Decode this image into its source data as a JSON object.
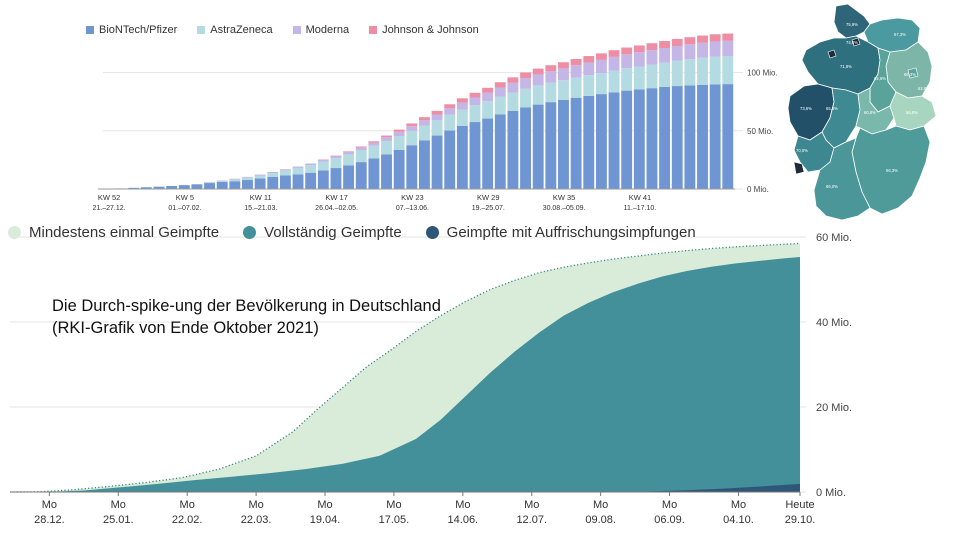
{
  "annotation": {
    "line1": "Die Durch-spike-ung der Bevölkerung in Deutschland",
    "line2": "(RKI-Grafik von Ende Oktober 2021)"
  },
  "colors": {
    "biontech": "#6f95d2",
    "astrazeneca": "#b4dbe1",
    "moderna": "#c4b6e6",
    "jj": "#ee8ea5",
    "once": "#d9ecd9",
    "full": "#438f9a",
    "booster": "#2d5679",
    "dots": "#3a8580",
    "grid": "#e5e5e5"
  },
  "chart_data": [
    {
      "type": "bar",
      "stacked": true,
      "legend_position": "top-left",
      "x_tick_labels": [
        {
          "kw": "KW 52",
          "date": "21.–27.12."
        },
        {
          "kw": "KW 5",
          "date": "01.–07.02."
        },
        {
          "kw": "KW 11",
          "date": "15.–21.03."
        },
        {
          "kw": "KW 17",
          "date": "26.04.–02.05."
        },
        {
          "kw": "KW 23",
          "date": "07.–13.06."
        },
        {
          "kw": "KW 29",
          "date": "19.–25.07."
        },
        {
          "kw": "KW 35",
          "date": "30.08.–05.09."
        },
        {
          "kw": "KW 41",
          "date": "11.–17.10."
        }
      ],
      "y_tick_labels": [
        "0 Mio.",
        "50 Mio.",
        "100 Mio."
      ],
      "y_ticks": [
        0,
        50,
        100
      ],
      "ylim": [
        0,
        140
      ],
      "grid": true,
      "series": [
        {
          "name": "BioNTech/Pfizer",
          "color_key": "biontech",
          "values": [
            0.1,
            0.5,
            1,
            1.5,
            2,
            2.6,
            3.3,
            4,
            5.1,
            6,
            6.7,
            7.7,
            9,
            10.3,
            11.6,
            12.6,
            14,
            16,
            18,
            20.3,
            23.1,
            26.3,
            29.8,
            33.5,
            37.6,
            41.8,
            45.9,
            50.2,
            54.1,
            57.5,
            60.5,
            64,
            67,
            70,
            72.5,
            74.6,
            76.6,
            78.4,
            80,
            81.5,
            83,
            84.5,
            85.6,
            86.6,
            87.6,
            88.4,
            89,
            89.5,
            89.8,
            90.1
          ]
        },
        {
          "name": "AstraZeneca",
          "color_key": "astrazeneca",
          "values": [
            0,
            0,
            0,
            0,
            0,
            0,
            0,
            0.1,
            0.5,
            1,
            1.5,
            2,
            2.6,
            3.4,
            4.4,
            5.5,
            6.5,
            7.6,
            8.5,
            9.4,
            10.1,
            10.8,
            11.4,
            12,
            12.3,
            12.7,
            13.1,
            13.6,
            14,
            14.5,
            14.9,
            15.4,
            15.8,
            16.2,
            16.5,
            16.7,
            16.8,
            17.3,
            17.7,
            18,
            18.8,
            19.2,
            19.6,
            20.2,
            20.9,
            21.7,
            22.5,
            23.2,
            23.9,
            24.1
          ]
        },
        {
          "name": "Moderna",
          "color_key": "moderna",
          "values": [
            0,
            0,
            0,
            0,
            0,
            0,
            0,
            0.1,
            0.3,
            0.4,
            0.6,
            0.7,
            0.8,
            0.9,
            1,
            1.2,
            1.4,
            1.6,
            1.9,
            2.2,
            2.5,
            2.8,
            3.2,
            3.6,
            4.1,
            4.5,
            5,
            5.5,
            6,
            6.6,
            7.2,
            7.8,
            8.4,
            9,
            9.4,
            9.8,
            10.2,
            10.6,
            11,
            11.4,
            11.7,
            12,
            12.2,
            12.4,
            12.6,
            12.7,
            12.8,
            12.9,
            13,
            13.1
          ]
        },
        {
          "name": "Johnson & Johnson",
          "color_key": "jj",
          "values": [
            0,
            0,
            0,
            0,
            0,
            0,
            0,
            0,
            0,
            0,
            0,
            0,
            0,
            0,
            0,
            0,
            0,
            0.1,
            0.3,
            0.5,
            0.8,
            1.1,
            1.5,
            1.9,
            2.3,
            2.7,
            3.1,
            3.5,
            3.8,
            4,
            4.3,
            4.5,
            4.7,
            4.9,
            5,
            5.2,
            5.3,
            5.4,
            5.5,
            5.6,
            5.7,
            5.8,
            5.9,
            6,
            6,
            6.1,
            6.1,
            6.2,
            6.2,
            6.2
          ]
        }
      ]
    },
    {
      "type": "area",
      "x_tick_labels": [
        {
          "line1": "Mo",
          "line2": "28.12."
        },
        {
          "line1": "Mo",
          "line2": "25.01."
        },
        {
          "line1": "Mo",
          "line2": "22.02."
        },
        {
          "line1": "Mo",
          "line2": "22.03."
        },
        {
          "line1": "Mo",
          "line2": "19.04."
        },
        {
          "line1": "Mo",
          "line2": "17.05."
        },
        {
          "line1": "Mo",
          "line2": "14.06."
        },
        {
          "line1": "Mo",
          "line2": "12.07."
        },
        {
          "line1": "Mo",
          "line2": "09.08."
        },
        {
          "line1": "Mo",
          "line2": "06.09."
        },
        {
          "line1": "Mo",
          "line2": "04.10."
        },
        {
          "line1": "Heute",
          "line2": "29.10."
        }
      ],
      "x_tick_positions_days": [
        1,
        29,
        57,
        85,
        113,
        141,
        169,
        197,
        225,
        253,
        281,
        306
      ],
      "x_range_days": [
        -15,
        306
      ],
      "y_tick_labels": [
        "0 Mio.",
        "20 Mio.",
        "40 Mio.",
        "60 Mio."
      ],
      "y_ticks": [
        0,
        20,
        40,
        60
      ],
      "ylim": [
        0,
        60
      ],
      "grid": true,
      "legend_position": "top-left",
      "series": [
        {
          "name": "Mindestens einmal Geimpfte",
          "color_key": "once",
          "x_days": [
            -15,
            -3,
            10,
            25,
            40,
            55,
            70,
            85,
            100,
            110,
            120,
            130,
            140,
            150,
            160,
            170,
            180,
            190,
            200,
            210,
            220,
            230,
            240,
            250,
            260,
            270,
            280,
            290,
            300,
            306
          ],
          "values": [
            0,
            0.05,
            0.5,
            1.3,
            2.2,
            3.4,
            5.4,
            8.5,
            14.2,
            19.5,
            24.5,
            29.5,
            33.5,
            37.8,
            41.5,
            44.8,
            47.6,
            49.8,
            51.6,
            52.9,
            53.9,
            54.8,
            55.5,
            56.2,
            56.8,
            57.3,
            57.7,
            58.0,
            58.3,
            58.5
          ]
        },
        {
          "name": "Vollständig Geimpfte",
          "color_key": "full",
          "x_days": [
            -15,
            0,
            15,
            30,
            45,
            60,
            75,
            90,
            105,
            120,
            135,
            150,
            160,
            170,
            180,
            190,
            200,
            210,
            220,
            230,
            240,
            250,
            260,
            270,
            280,
            290,
            300,
            306
          ],
          "values": [
            0,
            0.03,
            0.35,
            1.1,
            1.9,
            2.8,
            3.6,
            4.4,
            5.4,
            6.6,
            8.5,
            12.5,
            17,
            22.5,
            28,
            33,
            37.5,
            41.5,
            44.5,
            47,
            49,
            50.7,
            52,
            53,
            53.8,
            54.4,
            55,
            55.3
          ]
        },
        {
          "name": "Geimpfte mit Auffrischungsimpfungen",
          "color_key": "booster",
          "x_days": [
            -15,
            230,
            245,
            260,
            275,
            290,
            306
          ],
          "values": [
            0,
            0,
            0.15,
            0.4,
            0.8,
            1.3,
            1.9
          ]
        }
      ]
    },
    {
      "type": "heatmap",
      "map": "Germany federal states",
      "labels": [
        "75,9%",
        "74,8%",
        "67,3%",
        "71,8%",
        "73,6%",
        "66,3%",
        "64,6%",
        "62,8%",
        "65,3%",
        "60,8%",
        "70,0%",
        "66,0%",
        "66,3%",
        "56,8%"
      ]
    }
  ]
}
